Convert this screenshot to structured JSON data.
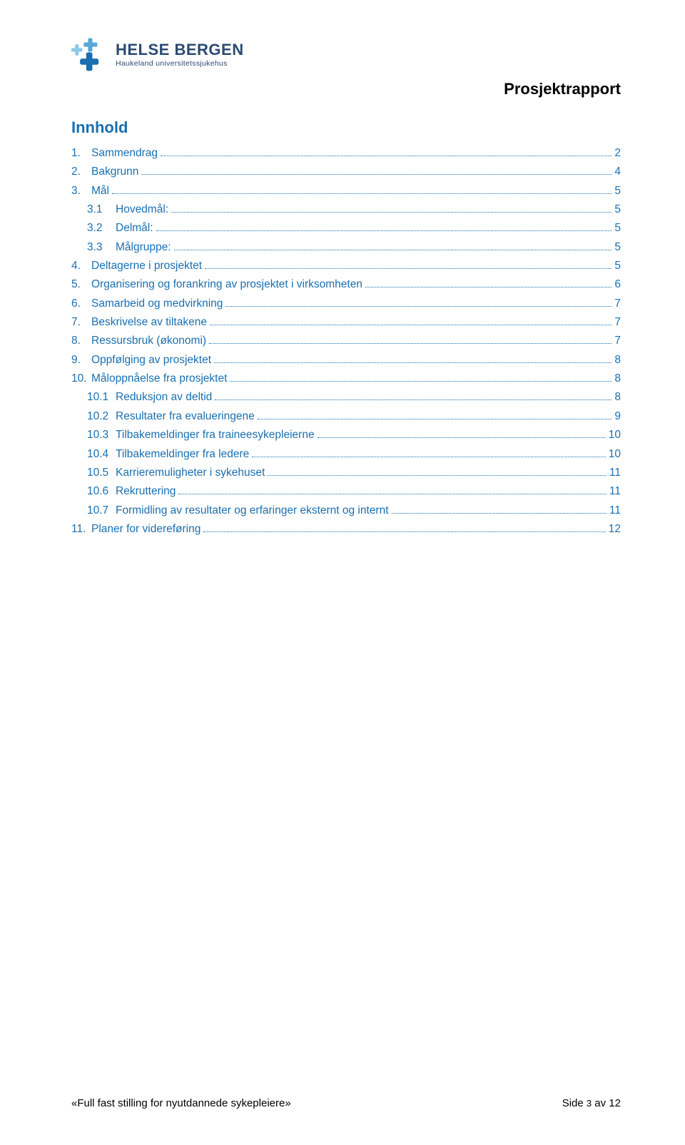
{
  "colors": {
    "brand_blue": "#1a6fb0",
    "brand_dark": "#2b4a73",
    "logo_accent_light": "#8fc9e6",
    "logo_accent_mid": "#57a8d6",
    "text_black": "#000000",
    "toc_link": "#1a6fb0",
    "leader": "#1a6fb0",
    "doc_title": "#000000",
    "background": "#ffffff"
  },
  "typography": {
    "body_family": "Arial, Helvetica, sans-serif",
    "logo_main_size_pt": 16,
    "logo_sub_size_pt": 8,
    "report_title_size_pt": 16,
    "toc_heading_size_pt": 16,
    "toc_row_size_pt": 11.5,
    "footer_size_pt": 11
  },
  "logo": {
    "main_text": "HELSE BERGEN",
    "sub_text": "Haukeland universitetssjukehus"
  },
  "doc": {
    "report_title": "Prosjektrapport",
    "toc_heading": "Innhold"
  },
  "toc": [
    {
      "level": 1,
      "num": "1.",
      "label": "Sammendrag",
      "page": "2"
    },
    {
      "level": 1,
      "num": "2.",
      "label": "Bakgrunn",
      "page": "4"
    },
    {
      "level": 1,
      "num": "3.",
      "label": "Mål",
      "page": "5"
    },
    {
      "level": 2,
      "num": "3.1",
      "label": "Hovedmål:",
      "page": "5"
    },
    {
      "level": 2,
      "num": "3.2",
      "label": "Delmål:",
      "page": "5"
    },
    {
      "level": 2,
      "num": "3.3",
      "label": "Målgruppe:",
      "page": "5"
    },
    {
      "level": 1,
      "num": "4.",
      "label": "Deltagerne i prosjektet",
      "page": "5"
    },
    {
      "level": 1,
      "num": "5.",
      "label": "Organisering og forankring av prosjektet i virksomheten",
      "page": "6"
    },
    {
      "level": 1,
      "num": "6.",
      "label": "Samarbeid og medvirkning",
      "page": "7"
    },
    {
      "level": 1,
      "num": "7.",
      "label": "Beskrivelse av tiltakene",
      "page": "7"
    },
    {
      "level": 1,
      "num": "8.",
      "label": "Ressursbruk (økonomi)",
      "page": "7"
    },
    {
      "level": 1,
      "num": "9.",
      "label": "Oppfølging av prosjektet",
      "page": "8"
    },
    {
      "level": 1,
      "num": "10.",
      "label": "Måloppnåelse fra prosjektet",
      "page": "8"
    },
    {
      "level": 2,
      "num": "10.1",
      "label": "Reduksjon av deltid",
      "page": "8"
    },
    {
      "level": 2,
      "num": "10.2",
      "label": "Resultater fra evalueringene",
      "page": "9"
    },
    {
      "level": 2,
      "num": "10.3",
      "label": "Tilbakemeldinger fra traineesykepleierne",
      "page": "10"
    },
    {
      "level": 2,
      "num": "10.4",
      "label": "Tilbakemeldinger fra ledere",
      "page": "10"
    },
    {
      "level": 2,
      "num": "10.5",
      "label": "Karrieremuligheter i sykehuset",
      "page": "11"
    },
    {
      "level": 2,
      "num": "10.6",
      "label": "Rekruttering",
      "page": "11"
    },
    {
      "level": 2,
      "num": "10.7",
      "label": "Formidling av resultater og erfaringer eksternt og internt",
      "page": "11"
    },
    {
      "level": 1,
      "num": "11.",
      "label": "Planer for videreføring",
      "page": "12"
    }
  ],
  "footer": {
    "left": "«Full fast stilling for nyutdannede sykepleiere»",
    "right_prefix": "Side ",
    "page_current": "3",
    "right_suffix": " av 12"
  }
}
